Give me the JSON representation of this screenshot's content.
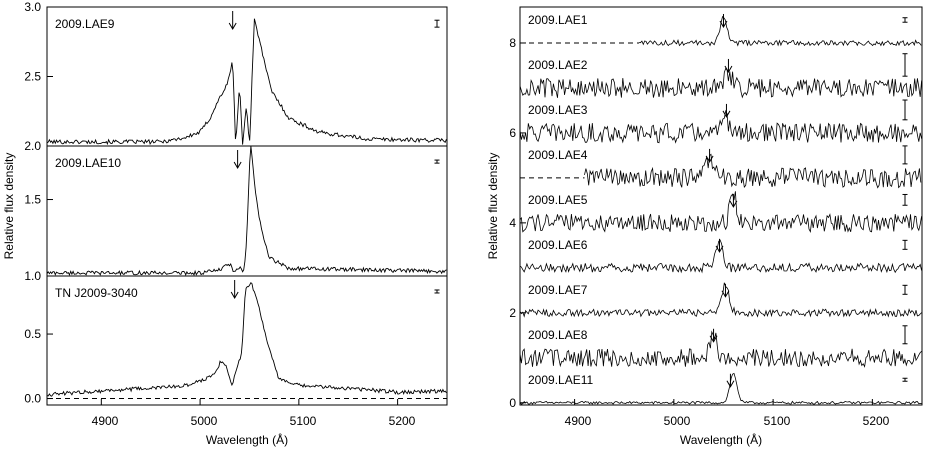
{
  "left_axis": {
    "ylabel": "Relative flux density",
    "xlabel": "Wavelength (Å)",
    "x_ticks": [
      "4900",
      "5000",
      "5100",
      "5200"
    ]
  },
  "right_axis": {
    "ylabel": "Relative flux density",
    "xlabel": "Wavelength (Å)",
    "x_ticks": [
      "4900",
      "5000",
      "5100",
      "5200"
    ]
  },
  "chart_data": [
    {
      "type": "line",
      "xlim": [
        4845,
        5250
      ],
      "xlabel": "Wavelength (Å)",
      "ylabel": "Relative flux density",
      "panels": [
        {
          "name": "2009.LAE9",
          "ylim": [
            2.0,
            3.0
          ],
          "yticks": [
            "2.0",
            "2.5",
            "3.0"
          ],
          "yticks_values": [
            2.0,
            2.5,
            3.0
          ],
          "baseline": 2.0,
          "arrow_x": 5033,
          "err_half": 0.025,
          "profile": [
            [
              4845,
              2.03
            ],
            [
              4960,
              2.03
            ],
            [
              4985,
              2.06
            ],
            [
              5000,
              2.1
            ],
            [
              5010,
              2.2
            ],
            [
              5020,
              2.35
            ],
            [
              5028,
              2.45
            ],
            [
              5033,
              2.62
            ],
            [
              5036,
              2.0
            ],
            [
              5040,
              2.45
            ],
            [
              5043,
              2.0
            ],
            [
              5047,
              2.3
            ],
            [
              5050,
              2.0
            ],
            [
              5055,
              2.92
            ],
            [
              5062,
              2.7
            ],
            [
              5072,
              2.4
            ],
            [
              5090,
              2.2
            ],
            [
              5120,
              2.1
            ],
            [
              5170,
              2.05
            ],
            [
              5250,
              2.04
            ]
          ]
        },
        {
          "name": "2009.LAE10",
          "ylim": [
            1.0,
            1.85
          ],
          "yticks": [
            "1.0",
            "1.5"
          ],
          "yticks_values": [
            1.0,
            1.5
          ],
          "baseline": 1.0,
          "arrow_x": 5038,
          "err_half": 0.01,
          "profile": [
            [
              4845,
              1.02
            ],
            [
              5000,
              1.02
            ],
            [
              5020,
              1.04
            ],
            [
              5030,
              1.08
            ],
            [
              5035,
              1.02
            ],
            [
              5040,
              1.06
            ],
            [
              5044,
              1.02
            ],
            [
              5047,
              1.2
            ],
            [
              5051,
              1.88
            ],
            [
              5056,
              1.55
            ],
            [
              5062,
              1.3
            ],
            [
              5070,
              1.12
            ],
            [
              5090,
              1.05
            ],
            [
              5250,
              1.03
            ]
          ]
        },
        {
          "name": "TN J2009-3040",
          "ylim": [
            -0.05,
            0.95
          ],
          "yticks": [
            "0.0",
            "0.5"
          ],
          "yticks_values": [
            0.0,
            0.5
          ],
          "baseline": 0.0,
          "arrow_x": 5035,
          "err_half": 0.01,
          "profile": [
            [
              4845,
              0.03
            ],
            [
              4900,
              0.06
            ],
            [
              4950,
              0.08
            ],
            [
              4985,
              0.1
            ],
            [
              5005,
              0.15
            ],
            [
              5015,
              0.2
            ],
            [
              5022,
              0.3
            ],
            [
              5028,
              0.22
            ],
            [
              5032,
              0.1
            ],
            [
              5036,
              0.2
            ],
            [
              5042,
              0.35
            ],
            [
              5046,
              0.85
            ],
            [
              5052,
              0.9
            ],
            [
              5060,
              0.7
            ],
            [
              5070,
              0.38
            ],
            [
              5080,
              0.15
            ],
            [
              5100,
              0.1
            ],
            [
              5150,
              0.08
            ],
            [
              5200,
              0.05
            ],
            [
              5250,
              0.06
            ]
          ]
        }
      ]
    },
    {
      "type": "line",
      "xlim": [
        4845,
        5250
      ],
      "ylim": [
        -0.05,
        8.8
      ],
      "yticks": [
        "0",
        "2",
        "4",
        "6",
        "8"
      ],
      "yticks_values": [
        0,
        2,
        4,
        6,
        8
      ],
      "xlabel": "Wavelength (Å)",
      "ylabel": "Relative flux density",
      "series": [
        {
          "name": "2009.LAE1",
          "offset": 8,
          "start_x": 4965,
          "arrow_x": 5050,
          "noise": 0.06,
          "line_x": 5050,
          "line_amp": 0.55,
          "err_half": 0.05
        },
        {
          "name": "2009.LAE2",
          "offset": 7,
          "start_x": 4845,
          "arrow_x": 5055,
          "noise": 0.22,
          "line_x": 5055,
          "line_amp": 0.35,
          "err_half": 0.25
        },
        {
          "name": "2009.LAE3",
          "offset": 6,
          "start_x": 4845,
          "arrow_x": 5053,
          "noise": 0.22,
          "line_x": 5053,
          "line_amp": 0.3,
          "err_half": 0.22
        },
        {
          "name": "2009.LAE4",
          "offset": 5,
          "start_x": 4910,
          "arrow_x": 5036,
          "noise": 0.22,
          "line_x": 5036,
          "line_amp": 0.4,
          "err_half": 0.2
        },
        {
          "name": "2009.LAE5",
          "offset": 4,
          "start_x": 4845,
          "arrow_x": 5060,
          "noise": 0.2,
          "line_x": 5060,
          "line_amp": 0.6,
          "err_half": 0.12
        },
        {
          "name": "2009.LAE6",
          "offset": 3,
          "start_x": 4845,
          "arrow_x": 5046,
          "noise": 0.1,
          "line_x": 5046,
          "line_amp": 0.6,
          "err_half": 0.1
        },
        {
          "name": "2009.LAE7",
          "offset": 2,
          "start_x": 4845,
          "arrow_x": 5052,
          "noise": 0.08,
          "line_x": 5052,
          "line_amp": 0.65,
          "err_half": 0.1
        },
        {
          "name": "2009.LAE8",
          "offset": 1,
          "start_x": 4845,
          "arrow_x": 5040,
          "noise": 0.2,
          "line_x": 5040,
          "line_amp": 0.5,
          "err_half": 0.2
        },
        {
          "name": "2009.LAE11",
          "offset": 0,
          "start_x": 4845,
          "arrow_x": 5057,
          "noise": 0.03,
          "line_x": 5060,
          "line_amp": 0.65,
          "err_half": 0.03
        }
      ]
    }
  ]
}
